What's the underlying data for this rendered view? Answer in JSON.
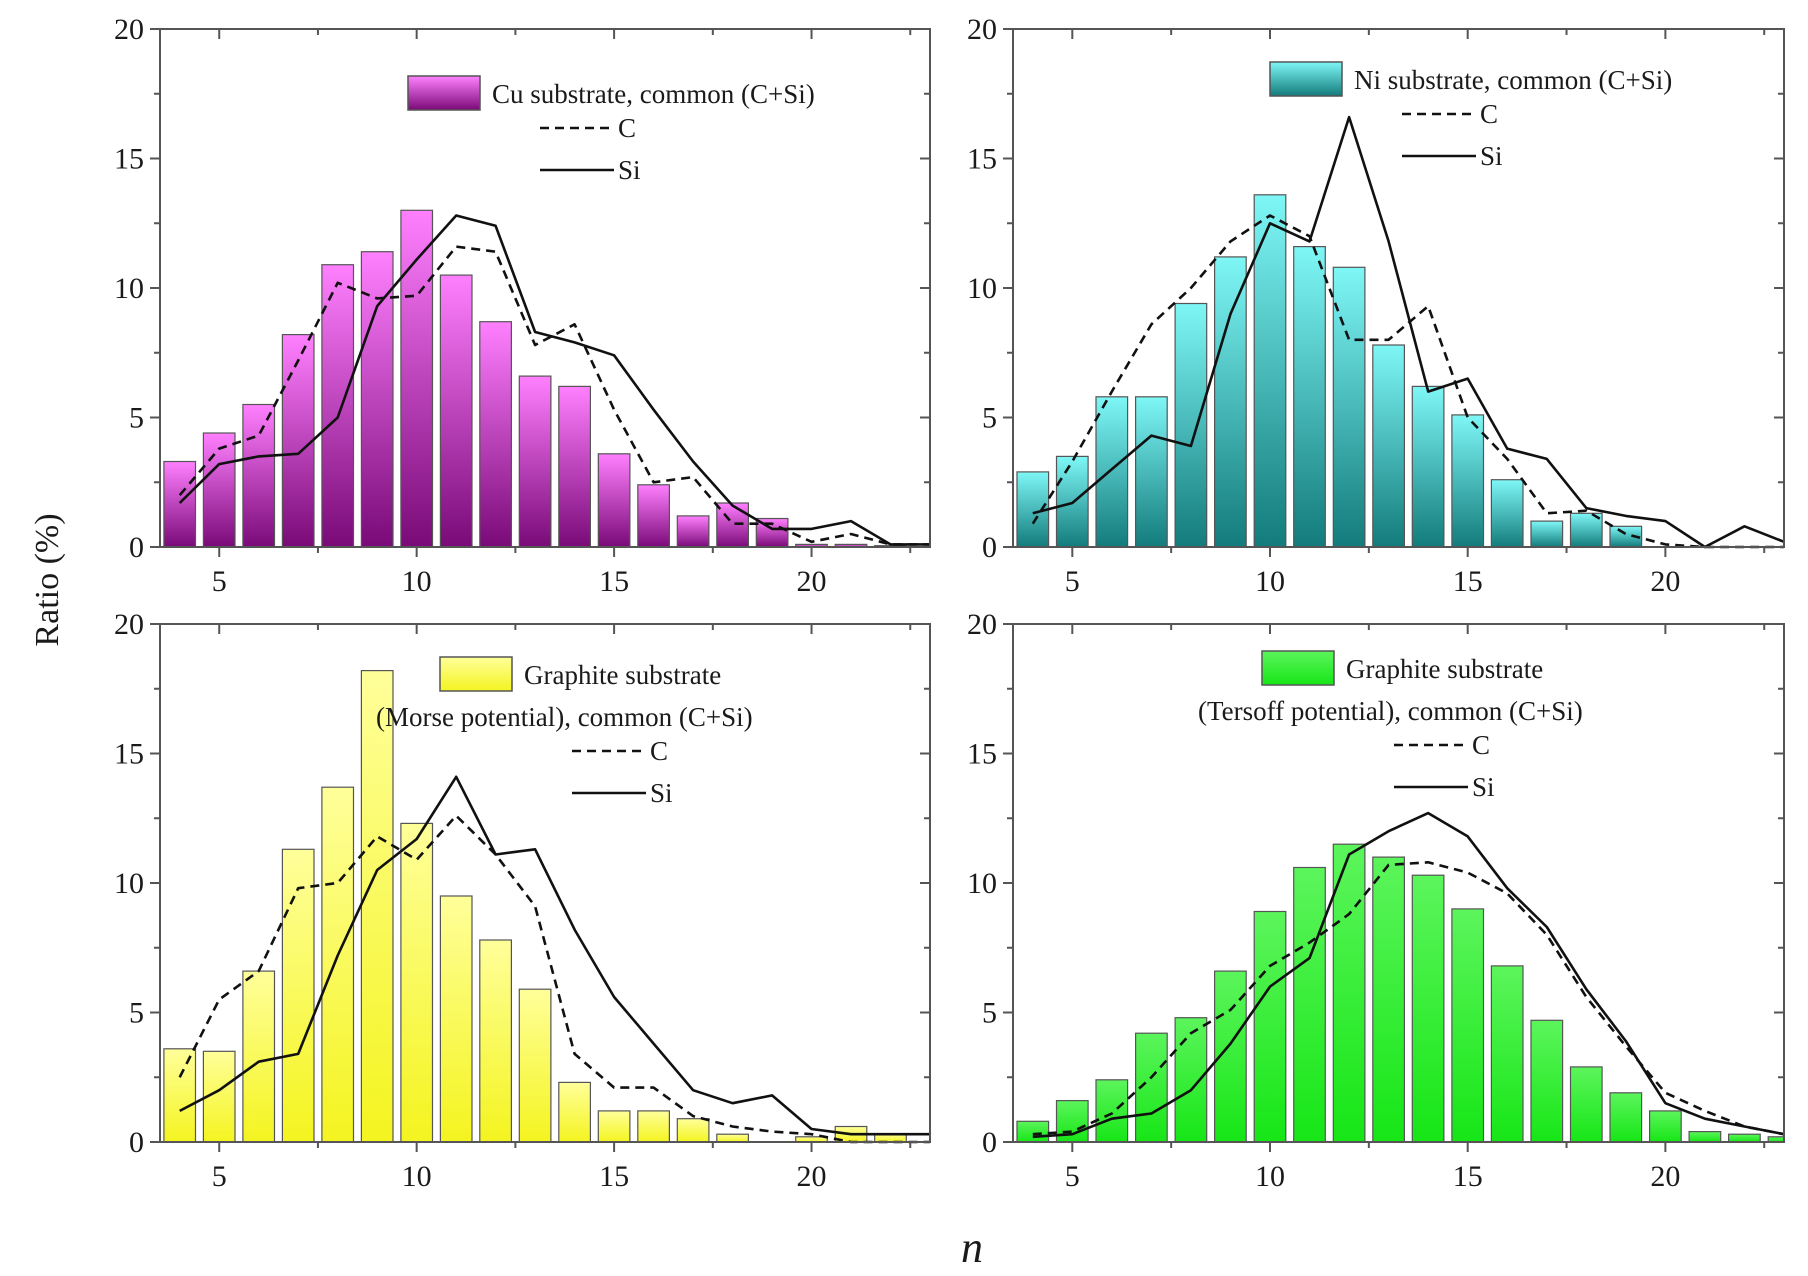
{
  "chart_data": {
    "type": "bar",
    "layout": "2x2 grid",
    "shared_ylabel": "Ratio (%)",
    "shared_xlabel": "n",
    "x": [
      4,
      5,
      6,
      7,
      8,
      9,
      10,
      11,
      12,
      13,
      14,
      15,
      16,
      17,
      18,
      19,
      20,
      21,
      22,
      23
    ],
    "xlim": [
      3.5,
      23
    ],
    "ylim": [
      0,
      20
    ],
    "xticks": [
      5,
      10,
      15,
      20
    ],
    "yticks": [
      0,
      5,
      10,
      15,
      20
    ],
    "grid": false,
    "legend_placement": "top-right",
    "legend_series_labels": {
      "C": "C",
      "Si": "Si"
    },
    "panels": [
      {
        "id": "cu",
        "position": "top-left",
        "legend_lines": [
          "Cu substrate, common (C+Si)"
        ],
        "bar_colors": {
          "top": "#ff80ff",
          "bottom": "#7a0a78"
        },
        "series": [
          {
            "name": "Cu substrate, common (C+Si)",
            "kind": "bar",
            "values": [
              3.3,
              4.4,
              5.5,
              8.2,
              10.9,
              11.4,
              13.0,
              10.5,
              8.7,
              6.6,
              6.2,
              3.6,
              2.4,
              1.2,
              1.7,
              1.1,
              0.1,
              0.1,
              0.05,
              null
            ]
          },
          {
            "name": "C",
            "kind": "line",
            "style": "dashed",
            "values": [
              2.0,
              3.8,
              4.3,
              7.2,
              10.2,
              9.6,
              9.7,
              11.6,
              11.4,
              7.8,
              8.6,
              5.3,
              2.5,
              2.7,
              0.9,
              0.9,
              0.2,
              0.5,
              0.1,
              0.1
            ]
          },
          {
            "name": "Si",
            "kind": "line",
            "style": "solid",
            "values": [
              1.7,
              3.2,
              3.5,
              3.6,
              5.0,
              9.3,
              11.1,
              12.8,
              12.4,
              8.3,
              7.9,
              7.4,
              5.3,
              3.3,
              1.6,
              0.7,
              0.7,
              1.0,
              0.1,
              0.1
            ]
          }
        ]
      },
      {
        "id": "ni",
        "position": "top-right",
        "legend_lines": [
          "Ni substrate, common (C+Si)"
        ],
        "bar_colors": {
          "top": "#7ff7f7",
          "bottom": "#137b7b"
        },
        "series": [
          {
            "name": "Ni substrate, common (C+Si)",
            "kind": "bar",
            "values": [
              2.9,
              3.5,
              5.8,
              5.8,
              9.4,
              11.2,
              13.6,
              11.6,
              10.8,
              7.8,
              6.2,
              5.1,
              2.6,
              1.0,
              1.3,
              0.8,
              null,
              null,
              null,
              null
            ]
          },
          {
            "name": "C",
            "kind": "line",
            "style": "dashed",
            "values": [
              0.9,
              3.3,
              6.0,
              8.6,
              10.0,
              11.8,
              12.8,
              12.0,
              8.0,
              8.0,
              9.3,
              5.0,
              3.4,
              1.3,
              1.4,
              0.5,
              0.1,
              0.0,
              0.0,
              0.0
            ]
          },
          {
            "name": "Si",
            "kind": "line",
            "style": "solid",
            "values": [
              1.3,
              1.7,
              3.0,
              4.3,
              3.9,
              9.0,
              12.5,
              11.8,
              16.6,
              11.8,
              6.0,
              6.5,
              3.8,
              3.4,
              1.5,
              1.2,
              1.0,
              0.0,
              0.8,
              0.2
            ]
          }
        ]
      },
      {
        "id": "graphite-morse",
        "position": "bottom-left",
        "legend_lines": [
          "Graphite substrate",
          "(Morse potential), common (C+Si)"
        ],
        "bar_colors": {
          "top": "#ffff9a",
          "bottom": "#f4f420"
        },
        "series": [
          {
            "name": "Graphite substrate (Morse potential), common (C+Si)",
            "kind": "bar",
            "values": [
              3.6,
              3.5,
              6.6,
              11.3,
              13.7,
              18.2,
              12.3,
              9.5,
              7.8,
              5.9,
              2.3,
              1.2,
              1.2,
              0.9,
              0.3,
              null,
              0.2,
              0.6,
              0.3,
              null
            ]
          },
          {
            "name": "C",
            "kind": "line",
            "style": "dashed",
            "values": [
              2.5,
              5.5,
              6.6,
              9.8,
              10.0,
              11.8,
              10.9,
              12.6,
              11.1,
              9.1,
              3.4,
              2.1,
              2.1,
              1.0,
              0.6,
              0.4,
              0.3,
              0.0,
              0.0,
              0.0
            ]
          },
          {
            "name": "Si",
            "kind": "line",
            "style": "solid",
            "values": [
              1.2,
              2.0,
              3.1,
              3.4,
              7.2,
              10.5,
              11.7,
              14.1,
              11.1,
              11.3,
              8.2,
              5.6,
              3.8,
              2.0,
              1.5,
              1.8,
              0.5,
              0.3,
              0.3,
              0.3
            ]
          }
        ]
      },
      {
        "id": "graphite-tersoff",
        "position": "bottom-right",
        "legend_lines": [
          "Graphite substrate",
          "(Tersoff potential), common (C+Si)"
        ],
        "bar_colors": {
          "top": "#5cf55c",
          "bottom": "#16e616"
        },
        "series": [
          {
            "name": "Graphite substrate (Tersoff potential), common (C+Si)",
            "kind": "bar",
            "values": [
              0.8,
              1.6,
              2.4,
              4.2,
              4.8,
              6.6,
              8.9,
              10.6,
              11.5,
              11.0,
              10.3,
              9.0,
              6.8,
              4.7,
              2.9,
              1.9,
              1.2,
              0.4,
              0.3,
              0.2
            ]
          },
          {
            "name": "C",
            "kind": "line",
            "style": "dashed",
            "values": [
              0.3,
              0.4,
              1.1,
              2.5,
              4.2,
              5.1,
              6.8,
              7.7,
              8.8,
              10.7,
              10.8,
              10.4,
              9.6,
              8.0,
              5.6,
              3.7,
              1.9,
              1.2,
              0.6,
              0.3
            ]
          },
          {
            "name": "Si",
            "kind": "line",
            "style": "solid",
            "values": [
              0.2,
              0.3,
              0.9,
              1.1,
              2.0,
              3.8,
              6.0,
              7.1,
              11.1,
              12.0,
              12.7,
              11.8,
              9.8,
              8.3,
              5.9,
              3.9,
              1.5,
              0.9,
              0.6,
              0.3
            ]
          }
        ]
      }
    ]
  }
}
